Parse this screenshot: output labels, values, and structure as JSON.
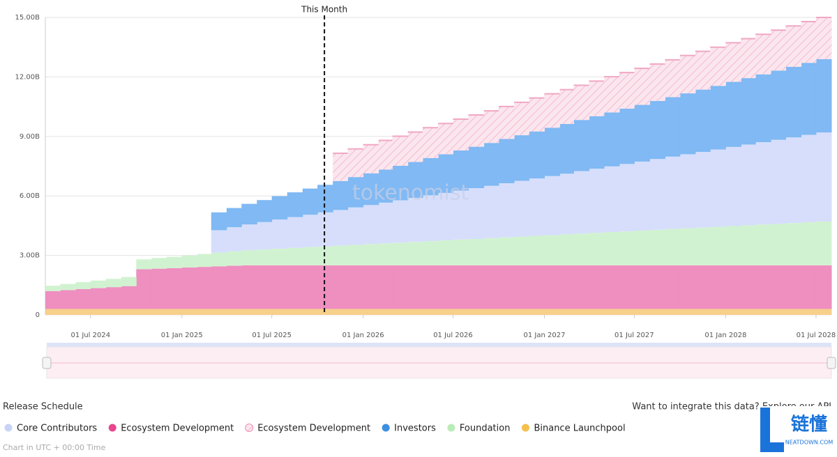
{
  "chart_data": {
    "type": "stacked_step_area",
    "x": [
      "2024-04-01",
      "2024-05-01",
      "2024-06-01",
      "2024-07-01",
      "2024-08-01",
      "2024-09-01",
      "2024-10-01",
      "2024-11-01",
      "2024-12-01",
      "2025-01-01",
      "2025-02-01",
      "2025-03-01",
      "2025-04-01",
      "2025-05-01",
      "2025-06-01",
      "2025-07-01",
      "2025-08-01",
      "2025-09-01",
      "2025-10-01",
      "2025-11-01",
      "2025-12-01",
      "2026-01-01",
      "2026-02-01",
      "2026-03-01",
      "2026-04-01",
      "2026-05-01",
      "2026-06-01",
      "2026-07-01",
      "2026-08-01",
      "2026-09-01",
      "2026-10-01",
      "2026-11-01",
      "2026-12-01",
      "2027-01-01",
      "2027-02-01",
      "2027-03-01",
      "2027-04-01",
      "2027-05-01",
      "2027-06-01",
      "2027-07-01",
      "2027-08-01",
      "2027-09-01",
      "2027-10-01",
      "2027-11-01",
      "2027-12-01",
      "2028-01-01",
      "2028-02-01",
      "2028-03-01",
      "2028-04-01",
      "2028-05-01",
      "2028-06-01",
      "2028-07-01"
    ],
    "xlim": [
      "2024-04-01",
      "2028-08-01"
    ],
    "xticks": [
      {
        "value": "2024-07-01",
        "label": "01 Jul 2024"
      },
      {
        "value": "2025-01-01",
        "label": "01 Jan 2025"
      },
      {
        "value": "2025-07-01",
        "label": "01 Jul 2025"
      },
      {
        "value": "2026-01-01",
        "label": "01 Jan 2026"
      },
      {
        "value": "2026-07-01",
        "label": "01 Jul 2026"
      },
      {
        "value": "2027-01-01",
        "label": "01 Jan 2027"
      },
      {
        "value": "2027-07-01",
        "label": "01 Jul 2027"
      },
      {
        "value": "2028-01-01",
        "label": "01 Jan 2028"
      },
      {
        "value": "2028-07-01",
        "label": "01 Jul 2028"
      }
    ],
    "ylim": [
      0,
      15
    ],
    "yticks": [
      0,
      {
        "value": 3,
        "label": "3.00B"
      },
      {
        "value": 6,
        "label": "6.00B"
      },
      {
        "value": 9,
        "label": "9.00B"
      },
      {
        "value": 12,
        "label": "12.00B"
      },
      {
        "value": 15,
        "label": "15.00B"
      }
    ],
    "grid": true,
    "annotations": [
      {
        "label": "This Month",
        "x": "2025-10-15"
      }
    ],
    "series": [
      {
        "name": "Core Contributors",
        "color": "#d6defc",
        "values": [
          null,
          null,
          null,
          null,
          null,
          null,
          null,
          null,
          null,
          null,
          null,
          1.13,
          1.21,
          1.3,
          1.38,
          1.47,
          1.55,
          1.63,
          1.72,
          1.8,
          1.89,
          1.97,
          2.05,
          2.14,
          2.22,
          2.31,
          2.39,
          2.47,
          2.56,
          2.64,
          2.73,
          2.81,
          2.89,
          2.98,
          3.06,
          3.15,
          3.23,
          3.31,
          3.4,
          3.48,
          3.57,
          3.65,
          3.73,
          3.82,
          3.9,
          3.99,
          4.07,
          4.15,
          4.24,
          4.32,
          4.41,
          4.49
        ]
      },
      {
        "name": "Ecosystem Development",
        "color": "#ee8fc0",
        "values": [
          0.9,
          0.95,
          1,
          1.05,
          1.1,
          1.15,
          2,
          2.03,
          2.06,
          2.09,
          2.12,
          2.15,
          2.18,
          2.2,
          2.2,
          2.2,
          2.2,
          2.2,
          2.2,
          2.2,
          2.2,
          2.2,
          2.2,
          2.2,
          2.2,
          2.2,
          2.2,
          2.2,
          2.2,
          2.2,
          2.2,
          2.2,
          2.2,
          2.2,
          2.2,
          2.2,
          2.2,
          2.2,
          2.2,
          2.2,
          2.2,
          2.2,
          2.2,
          2.2,
          2.2,
          2.2,
          2.2,
          2.2,
          2.2,
          2.2,
          2.2,
          2.2
        ]
      },
      {
        "name": "Ecosystem Development",
        "color": "#f9dbe5",
        "hatched": true,
        "values": [
          null,
          null,
          null,
          null,
          null,
          null,
          null,
          null,
          null,
          null,
          null,
          null,
          null,
          null,
          null,
          null,
          null,
          null,
          null,
          1.4,
          1.42,
          1.44,
          1.47,
          1.49,
          1.51,
          1.53,
          1.55,
          1.58,
          1.6,
          1.62,
          1.64,
          1.66,
          1.69,
          1.71,
          1.73,
          1.75,
          1.77,
          1.8,
          1.82,
          1.84,
          1.86,
          1.88,
          1.91,
          1.93,
          1.95,
          1.97,
          1.99,
          2.02,
          2.04,
          2.06,
          2.08,
          2.1
        ]
      },
      {
        "name": "Investors",
        "color": "#80b9f3",
        "values": [
          null,
          null,
          null,
          null,
          null,
          null,
          null,
          null,
          null,
          null,
          null,
          0.9,
          0.97,
          1.04,
          1.11,
          1.18,
          1.25,
          1.32,
          1.39,
          1.46,
          1.53,
          1.6,
          1.67,
          1.74,
          1.81,
          1.88,
          1.95,
          2.02,
          2.09,
          2.16,
          2.23,
          2.3,
          2.37,
          2.44,
          2.51,
          2.58,
          2.65,
          2.72,
          2.79,
          2.86,
          2.93,
          3,
          3.07,
          3.14,
          3.21,
          3.28,
          3.35,
          3.42,
          3.49,
          3.56,
          3.63,
          3.7
        ]
      },
      {
        "name": "Foundation",
        "color": "#d1f2d0",
        "values": [
          0.27,
          0.31,
          0.35,
          0.38,
          0.42,
          0.46,
          0.5,
          0.54,
          0.57,
          0.61,
          0.65,
          0.69,
          0.73,
          0.76,
          0.8,
          0.84,
          0.88,
          0.92,
          0.95,
          0.99,
          1.03,
          1.07,
          1.11,
          1.14,
          1.18,
          1.22,
          1.26,
          1.3,
          1.33,
          1.37,
          1.41,
          1.45,
          1.49,
          1.52,
          1.56,
          1.6,
          1.64,
          1.68,
          1.71,
          1.75,
          1.79,
          1.83,
          1.87,
          1.9,
          1.94,
          1.98,
          2.02,
          2.06,
          2.09,
          2.13,
          2.17,
          2.21
        ]
      },
      {
        "name": "Binance Launchpool",
        "color": "#f7d08a",
        "values": [
          0.3,
          0.3,
          0.3,
          0.3,
          0.3,
          0.3,
          0.3,
          0.3,
          0.3,
          0.3,
          0.3,
          0.3,
          0.3,
          0.3,
          0.3,
          0.3,
          0.3,
          0.3,
          0.3,
          0.3,
          0.3,
          0.3,
          0.3,
          0.3,
          0.3,
          0.3,
          0.3,
          0.3,
          0.3,
          0.3,
          0.3,
          0.3,
          0.3,
          0.3,
          0.3,
          0.3,
          0.3,
          0.3,
          0.3,
          0.3,
          0.3,
          0.3,
          0.3,
          0.3,
          0.3,
          0.3,
          0.3,
          0.3,
          0.3,
          0.3,
          0.3,
          0.3
        ]
      }
    ]
  },
  "page": {
    "section_title": "Release Schedule",
    "api_note": "Want to integrate this data? Explore our API",
    "timezone_note": "Chart in UTC + 00:00 Time",
    "watermark": "tokenomist",
    "logo_text": "链懂",
    "logo_sub": "NEATDOWN.COM"
  }
}
